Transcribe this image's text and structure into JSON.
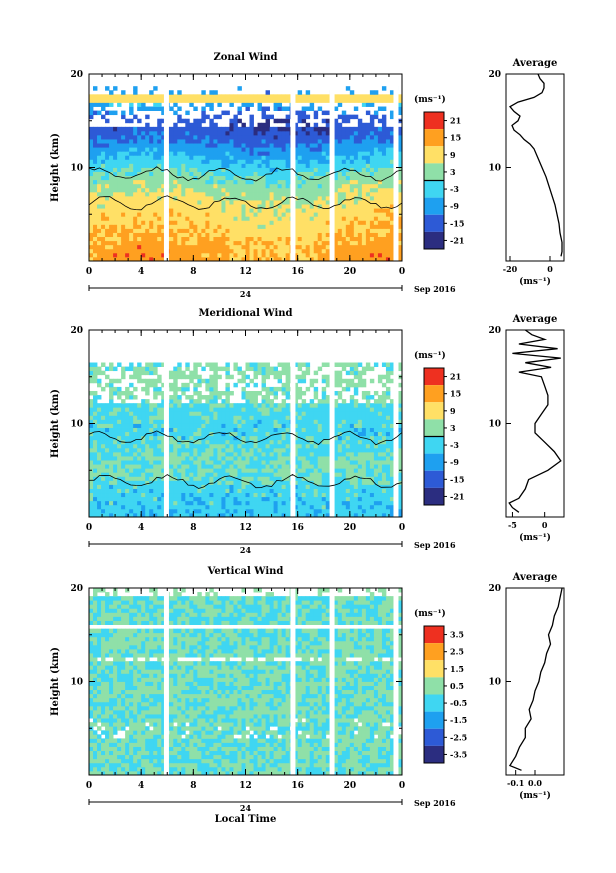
{
  "chart_data": [
    {
      "type": "heatmap",
      "title": "Zonal Wind",
      "ylabel": "Height (km)",
      "ylim": [
        0,
        20
      ],
      "yticks": [
        10,
        20
      ],
      "xticks": [
        "0",
        "4",
        "8",
        "12",
        "16",
        "20",
        "0"
      ],
      "date_label": "24",
      "month_label": "Sep 2016",
      "colorbar": {
        "unit": "(ms⁻¹)",
        "range": [
          -24,
          24
        ],
        "ticks": [
          "21",
          "15",
          "9",
          "3",
          "-3",
          "-9",
          "-15",
          "-21"
        ],
        "contour_level": 0
      },
      "gaps_hours": [
        5.9,
        15.6,
        18.6,
        23.5
      ],
      "field": {
        "kind": "zonal",
        "height_km": [
          1,
          3,
          5,
          7,
          9,
          11,
          13,
          15,
          17
        ],
        "mean_ms": [
          14,
          11,
          9,
          6,
          1,
          -6,
          -13,
          -19,
          -8
        ]
      },
      "average_profile": {
        "title": "Average",
        "xlabel": "(ms⁻¹)",
        "xticks": [
          "-20",
          "0"
        ],
        "xlim": [
          -22,
          7
        ],
        "ylim": [
          0,
          20
        ],
        "yticks": [
          10,
          20
        ],
        "height_km": [
          0.5,
          1,
          2,
          3,
          4,
          5,
          6,
          7,
          8,
          9,
          10,
          11,
          12,
          12.5,
          13,
          13.5,
          14,
          14.5,
          15,
          15.5,
          16,
          16.5,
          17,
          17.5,
          18,
          18.5,
          19,
          19.5,
          20
        ],
        "value_ms": [
          5.5,
          6,
          6,
          5,
          4.5,
          3.5,
          2.5,
          1,
          -0.5,
          -2,
          -4,
          -6,
          -8,
          -10,
          -13,
          -15,
          -18,
          -19,
          -16,
          -15,
          -18,
          -20,
          -16,
          -8,
          -4,
          -3,
          -3,
          -5,
          -6
        ]
      }
    },
    {
      "type": "heatmap",
      "title": "Meridional Wind",
      "ylabel": "Height (km)",
      "ylim": [
        0,
        20
      ],
      "yticks": [
        10,
        20
      ],
      "xticks": [
        "0",
        "4",
        "8",
        "12",
        "16",
        "20",
        "0"
      ],
      "date_label": "24",
      "month_label": "Sep 2016",
      "colorbar": {
        "unit": "(ms⁻¹)",
        "range": [
          -24,
          24
        ],
        "ticks": [
          "21",
          "15",
          "9",
          "3",
          "-3",
          "-9",
          "-15",
          "-21"
        ],
        "contour_level": 0
      },
      "gaps_hours": [
        5.9,
        15.6,
        18.6,
        23.5
      ],
      "field": {
        "kind": "meridional",
        "height_km": [
          1,
          3,
          5,
          7,
          9,
          11,
          13,
          15,
          17
        ],
        "mean_ms": [
          -4,
          -3,
          1,
          -1,
          -3,
          -2,
          -1,
          0,
          -1
        ]
      },
      "average_profile": {
        "title": "Average",
        "xlabel": "(ms⁻¹)",
        "xticks": [
          "-5",
          "0"
        ],
        "xlim": [
          -6,
          3
        ],
        "ylim": [
          0,
          20
        ],
        "yticks": [
          10,
          20
        ],
        "height_km": [
          0.5,
          1,
          1.5,
          2,
          3,
          4,
          5,
          6,
          7,
          8,
          9,
          10,
          11,
          12,
          13,
          14,
          15,
          15.5,
          16,
          16.5,
          17,
          17.5,
          18,
          18.5,
          19,
          19.5,
          20
        ],
        "value_ms": [
          -4,
          -5,
          -5.5,
          -4,
          -3,
          -2.5,
          0.5,
          2.5,
          1.5,
          0,
          -1.5,
          -1.5,
          -0.5,
          0.5,
          0.5,
          0,
          -0.5,
          -4,
          1,
          -3,
          2.5,
          -5,
          2,
          -4,
          0,
          -2,
          -3
        ]
      }
    },
    {
      "type": "heatmap",
      "title": "Vertical Wind",
      "xlabel": "Local Time",
      "ylabel": "Height (km)",
      "ylim": [
        0,
        20
      ],
      "yticks": [
        10,
        20
      ],
      "xticks": [
        "0",
        "4",
        "8",
        "12",
        "16",
        "20",
        "0"
      ],
      "date_label": "24",
      "month_label": "Sep 2016",
      "colorbar": {
        "unit": "(ms⁻¹)",
        "range": [
          -4,
          4
        ],
        "ticks": [
          "3.5",
          "2.5",
          "1.5",
          "0.5",
          "-0.5",
          "-1.5",
          "-2.5",
          "-3.5"
        ]
      },
      "gaps_hours": [
        5.9,
        15.6,
        18.6,
        23.5
      ],
      "field": {
        "kind": "vertical",
        "height_km": [
          2,
          6,
          10,
          14,
          18
        ],
        "mean_ms": [
          0,
          0.05,
          0.1,
          0.1,
          0.05
        ]
      },
      "average_profile": {
        "title": "Average",
        "xlabel": "(ms⁻¹)",
        "xticks": [
          "-0.1",
          "0.0"
        ],
        "xlim": [
          -0.15,
          0.15
        ],
        "ylim": [
          0,
          20
        ],
        "yticks": [
          10,
          20
        ],
        "height_km": [
          0.5,
          1,
          2,
          3,
          4,
          5,
          6,
          7,
          8,
          9,
          10,
          11,
          12,
          13,
          14,
          15,
          16,
          17,
          18,
          19,
          20
        ],
        "value_ms": [
          -0.07,
          -0.13,
          -0.1,
          -0.08,
          -0.05,
          -0.05,
          -0.02,
          -0.03,
          -0.01,
          0.0,
          0.02,
          0.03,
          0.05,
          0.06,
          0.08,
          0.07,
          0.09,
          0.1,
          0.12,
          0.13,
          0.14
        ]
      }
    }
  ]
}
